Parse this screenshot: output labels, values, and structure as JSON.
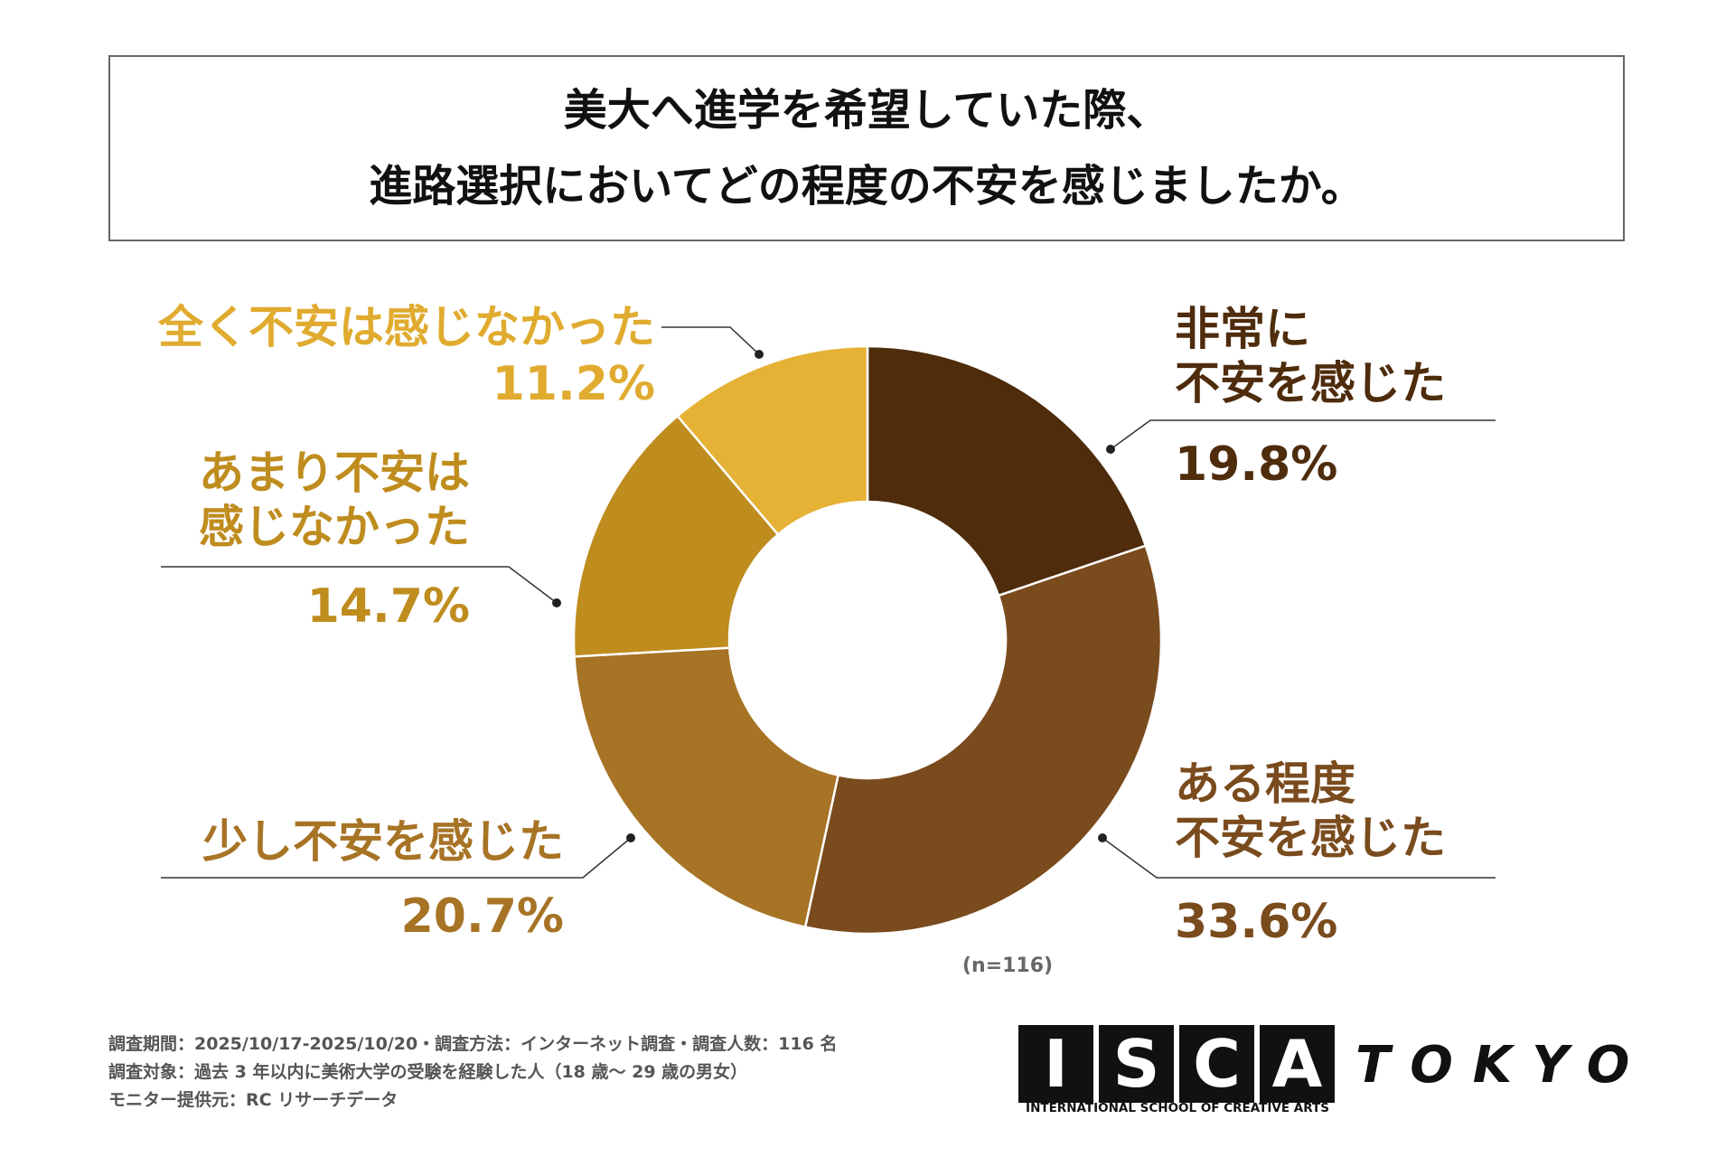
{
  "chart_data": {
    "type": "donut",
    "title": "美大へ進学を希望していた際、\n進路選択においてどの程度の不安を感じましたか。",
    "categories": [
      "非常に\n不安を感じた",
      "ある程度\n不安を感じた",
      "少し不安を感じた",
      "あまり不安は\n感じなかった",
      "全く不安は感じなかった"
    ],
    "values": [
      19.8,
      33.6,
      20.7,
      14.7,
      11.2
    ],
    "value_labels": [
      "19.8%",
      "33.6%",
      "20.7%",
      "14.7%",
      "11.2%"
    ],
    "colors": [
      "#4e2c0c",
      "#7a4b1d",
      "#a77325",
      "#bf8c1e",
      "#e5b235"
    ],
    "note": "(n=116)"
  },
  "footnotes": [
    "調査期間：2025/10/17-2025/10/20・調査方法：インターネット調査・調査人数：116 名",
    "調査対象：過去 3 年以内に美術大学の受験を経験した人（18 歳〜 29 歳の男女）",
    "モニター提供元：RC リサーチデータ"
  ],
  "logo": {
    "letters": [
      "I",
      "S",
      "C",
      "A"
    ],
    "word": "TOKYO",
    "subtitle": "INTERNATIONAL SCHOOL OF CREATIVE ARTS"
  }
}
